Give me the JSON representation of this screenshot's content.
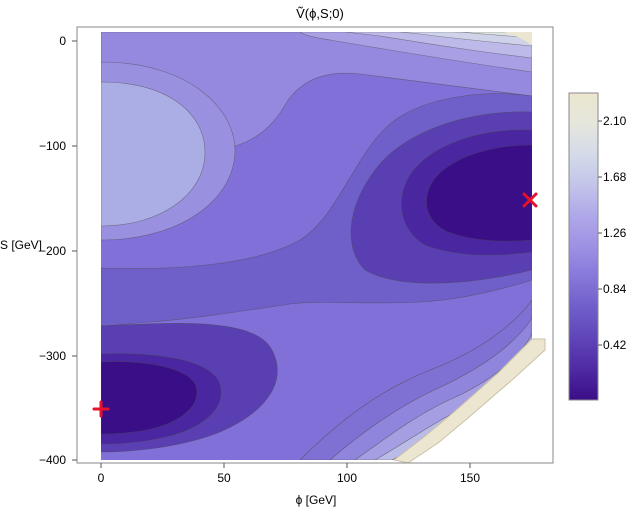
{
  "chart_data": {
    "type": "contour",
    "title": "Ṽ(ϕ,S;0)",
    "xlabel": "ϕ [GeV]",
    "ylabel": "S [GeV]",
    "xlim": [
      0,
      175
    ],
    "ylim": [
      -400,
      10
    ],
    "x_ticks": [
      "0",
      "50",
      "100",
      "150"
    ],
    "y_ticks": [
      "0",
      "−100",
      "−200",
      "−300",
      "−400"
    ],
    "grid": false,
    "colorbar": {
      "range": [
        0,
        2.3
      ],
      "ticks": [
        "0.42",
        "0.84",
        "1.26",
        "1.68",
        "2.10"
      ],
      "colors": [
        "#3a0e87",
        "#4f2aa3",
        "#5f45b8",
        "#6f5ec9",
        "#8677da",
        "#9d91e4",
        "#afa8e8",
        "#c2c4e9",
        "#d4dbe9",
        "#e5e6dc",
        "#ece6cf"
      ]
    },
    "markers": [
      {
        "symbol": "+",
        "x": 0,
        "y": -350,
        "color": "#e8102a"
      },
      {
        "symbol": "×",
        "x": 175,
        "y": -150,
        "color": "#e8102a"
      }
    ]
  }
}
